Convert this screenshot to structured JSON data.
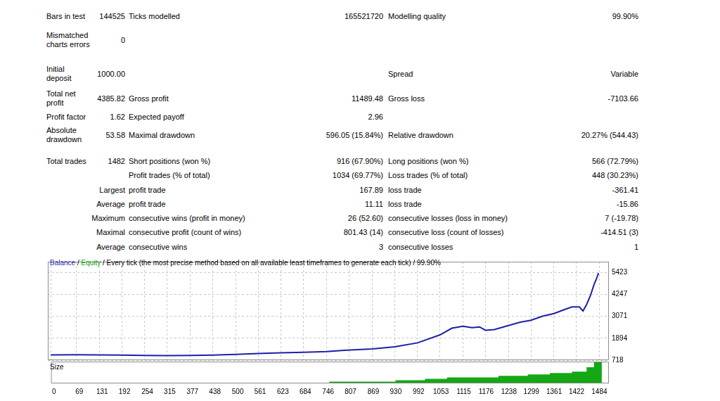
{
  "report": {
    "table": {
      "rows": [
        [
          "Bars in test",
          "144525",
          "Ticks modelled",
          "165521720",
          "Modelling quality",
          "99.90%"
        ],
        [
          "Mismatched charts errors",
          "0",
          null,
          null,
          null,
          null
        ],
        [
          "Initial deposit",
          "1000.00",
          null,
          null,
          "Spread",
          "Variable"
        ],
        [
          "Total net profit",
          "4385.82",
          "Gross profit",
          "11489.48",
          "Gross loss",
          "-7103.66"
        ],
        [
          "Profit factor",
          "1.62",
          "Expected payoff",
          "2.96",
          null,
          null
        ],
        [
          "Absolute drawdown",
          "53.58",
          "Maximal drawdown",
          "596.05 (15.84%)",
          "Relative drawdown",
          "20.27% (544.43)"
        ],
        [
          "Total trades",
          "1482",
          "Short positions (won %)",
          "916 (67.90%)",
          "Long positions (won %)",
          "566 (72.79%)"
        ],
        [
          null,
          null,
          "Profit trades (% of total)",
          "1034 (69.77%)",
          "Loss trades (% of total)",
          "448 (30.23%)"
        ],
        [
          null,
          "Largest",
          "profit trade",
          "167.89",
          "loss trade",
          "-361.41"
        ],
        [
          null,
          "Average",
          "profit trade",
          "11.11",
          "loss trade",
          "-15.86"
        ],
        [
          null,
          "Maximum",
          "consecutive wins (profit in money)",
          "26 (52.60)",
          "consecutive losses (loss in money)",
          "7 (-19.78)"
        ],
        [
          null,
          "Maximal",
          "consecutive profit (count of wins)",
          "801.43 (14)",
          "consecutive loss (count of losses)",
          "-414.51 (3)"
        ],
        [
          null,
          "Average",
          "consecutive wins",
          "3",
          "consecutive losses",
          "1"
        ]
      ]
    }
  },
  "chart_data": [
    {
      "type": "line",
      "title_parts": [
        {
          "text": "Balance",
          "color": "#1f1fa8"
        },
        {
          "text": " / ",
          "color": "#000000"
        },
        {
          "text": "Equity",
          "color": "#10a010"
        },
        {
          "text": " / Every tick (the most precise method based on all available least timeframes to generate each tick) / 99.90%",
          "color": "#000000"
        }
      ],
      "color": "#1f1fa8",
      "x": [
        0,
        69,
        131,
        192,
        254,
        315,
        377,
        438,
        500,
        561,
        623,
        684,
        746,
        800,
        869,
        930,
        992,
        1053,
        1085,
        1115,
        1140,
        1160,
        1176,
        1200,
        1238,
        1270,
        1299,
        1330,
        1361,
        1390,
        1410,
        1430,
        1440,
        1450,
        1460,
        1470,
        1476,
        1482
      ],
      "values": [
        1000,
        1010,
        1005,
        990,
        975,
        965,
        970,
        990,
        1030,
        1080,
        1110,
        1146,
        1181,
        1253,
        1324,
        1431,
        1645,
        2072,
        2429,
        2536,
        2464,
        2500,
        2322,
        2357,
        2572,
        2750,
        2856,
        3070,
        3213,
        3427,
        3569,
        3569,
        3355,
        3712,
        4175,
        4781,
        5066,
        5385.82
      ],
      "xlim": [
        -8,
        1510
      ],
      "xticks": [
        0,
        69,
        131,
        192,
        254,
        315,
        377,
        438,
        500,
        561,
        623,
        684,
        746,
        807,
        869,
        930,
        992,
        1053,
        1115,
        1176,
        1238,
        1299,
        1361,
        1422,
        1484
      ],
      "ylim": [
        718,
        5990
      ],
      "yticks": [
        718,
        1894,
        3071,
        4247,
        5423
      ],
      "grid": true,
      "tick_labels": "y"
    },
    {
      "type": "bar",
      "title": "Size",
      "color": "#14a814",
      "x": [
        760,
        780,
        800,
        820,
        840,
        860,
        880,
        900,
        920,
        940,
        960,
        980,
        1000,
        1020,
        1040,
        1060,
        1080,
        1100,
        1120,
        1140,
        1160,
        1180,
        1200,
        1220,
        1240,
        1260,
        1280,
        1300,
        1320,
        1340,
        1360,
        1380,
        1400,
        1420,
        1440,
        1460,
        1480
      ],
      "values": [
        0.01,
        0.01,
        0.01,
        0.01,
        0.01,
        0.01,
        0.01,
        0.01,
        0.01,
        0.02,
        0.02,
        0.02,
        0.02,
        0.03,
        0.03,
        0.03,
        0.04,
        0.04,
        0.04,
        0.04,
        0.04,
        0.04,
        0.04,
        0.05,
        0.05,
        0.05,
        0.05,
        0.06,
        0.06,
        0.06,
        0.07,
        0.07,
        0.07,
        0.08,
        0.08,
        0.11,
        0.15
      ],
      "xlim": [
        -8,
        1510
      ],
      "xticks": [
        0,
        69,
        131,
        192,
        254,
        315,
        377,
        438,
        500,
        561,
        623,
        684,
        746,
        807,
        869,
        930,
        992,
        1053,
        1115,
        1176,
        1238,
        1299,
        1361,
        1422,
        1484
      ],
      "ylim": [
        0,
        0.15
      ],
      "grid": false,
      "tick_labels": "x"
    }
  ]
}
